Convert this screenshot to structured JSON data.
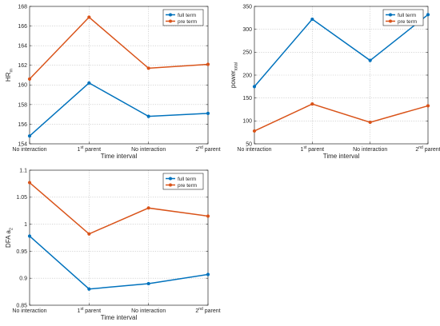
{
  "colors": {
    "full_term": "#0072BD",
    "pre_term": "#D95319",
    "axis": "#262626",
    "grid": "#bdbdbd"
  },
  "chart_data": [
    {
      "type": "line",
      "categories": [
        "No interaction",
        "1st parent",
        "No interaction",
        "2nd parent"
      ],
      "xlabel": "Time interval",
      "ylabel": "HR",
      "ylabel_sub": "m",
      "ylim": [
        154,
        168
      ],
      "yticks": [
        154,
        156,
        158,
        160,
        162,
        164,
        166,
        168
      ],
      "grid": true,
      "legend": "top-right",
      "series": [
        {
          "name": "full term",
          "values": [
            154.8,
            160.2,
            156.8,
            157.1
          ]
        },
        {
          "name": "pre term",
          "values": [
            160.6,
            166.9,
            161.7,
            162.1
          ]
        }
      ]
    },
    {
      "type": "line",
      "categories": [
        "No interaction",
        "1st parent",
        "No interaction",
        "2nd parent"
      ],
      "xlabel": "Time interval",
      "ylabel": "power",
      "ylabel_sub": "total",
      "ylim": [
        50,
        350
      ],
      "yticks": [
        50,
        100,
        150,
        200,
        250,
        300,
        350
      ],
      "grid": true,
      "legend": "top-right",
      "series": [
        {
          "name": "full term",
          "values": [
            175,
            322,
            232,
            332
          ]
        },
        {
          "name": "pre term",
          "values": [
            78,
            137,
            97,
            133
          ]
        }
      ]
    },
    {
      "type": "line",
      "categories": [
        "No interaction",
        "1st parent",
        "No interaction",
        "2nd parent"
      ],
      "xlabel": "Time interval",
      "ylabel": "DFA a",
      "ylabel_sub": "2",
      "ylim": [
        0.85,
        1.1
      ],
      "yticks": [
        0.85,
        0.9,
        0.95,
        1,
        1.05,
        1.1
      ],
      "grid": true,
      "legend": "top-right",
      "series": [
        {
          "name": "full term",
          "values": [
            0.978,
            0.88,
            0.89,
            0.907
          ]
        },
        {
          "name": "pre term",
          "values": [
            1.077,
            0.982,
            1.03,
            1.015
          ]
        }
      ]
    }
  ]
}
